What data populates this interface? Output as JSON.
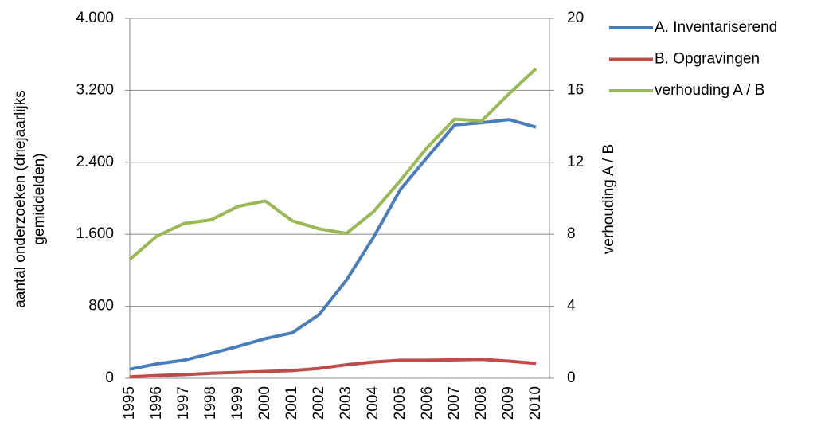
{
  "chart_data": {
    "type": "line",
    "ylabel": [
      "aantal onderzoeken (driejaarlijks",
      "gemiddelden)"
    ],
    "y2label": "verhouding A / B",
    "categories": [
      "1995",
      "1996",
      "1997",
      "1998",
      "1999",
      "2000",
      "2001",
      "2002",
      "2003",
      "2004",
      "2005",
      "2006",
      "2007",
      "2008",
      "2009",
      "2010"
    ],
    "series": [
      {
        "name": "A. Inventariserend",
        "color": "#4a7ebb",
        "values": [
          100,
          160,
          200,
          275,
          355,
          440,
          505,
          710,
          1090,
          1565,
          2100,
          2460,
          2815,
          2840,
          2875,
          2790
        ]
      },
      {
        "name": "B. Opgravingen",
        "color": "#be4b48",
        "values": [
          15,
          30,
          40,
          55,
          65,
          75,
          85,
          110,
          150,
          180,
          200,
          200,
          205,
          210,
          190,
          165
        ]
      },
      {
        "name": "verhouding A / B",
        "color": "#98b954",
        "axis": "y2",
        "values": [
          6.6,
          7.9,
          8.6,
          8.8,
          9.55,
          9.85,
          8.75,
          8.3,
          8.05,
          9.25,
          11.0,
          12.85,
          14.4,
          14.3,
          15.8,
          17.2
        ]
      }
    ],
    "ylim": [
      0,
      4000
    ],
    "yticks": [
      0,
      800,
      {
        "value": 1600,
        "label": "1.600"
      },
      {
        "value": 2400,
        "label": "2.400"
      },
      {
        "value": 3200,
        "label": "3.200"
      },
      {
        "value": 4000,
        "label": "4.000"
      }
    ],
    "y2lim": [
      0,
      20
    ],
    "y2ticks": [
      0,
      4,
      8,
      12,
      16,
      20
    ],
    "grid": true,
    "legend": "right"
  }
}
